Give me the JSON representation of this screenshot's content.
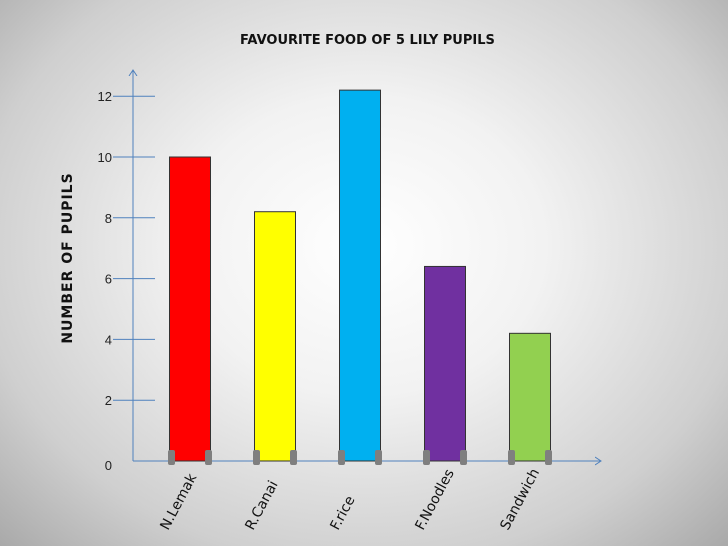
{
  "chart_data": {
    "type": "bar",
    "title": "FAVOURITE FOOD OF 5 LILY PUPILS",
    "ylabel": "NUMBER OF PUPILS",
    "xlabel": "",
    "categories": [
      "N.Lemak",
      "R.Canai",
      "F.rice",
      "F.Noodles",
      "Sandwich"
    ],
    "values": [
      10,
      8.2,
      12.2,
      6.4,
      4.2
    ],
    "colors": [
      "#ff0000",
      "#ffff00",
      "#00b0f0",
      "#7030a0",
      "#92d050"
    ],
    "yticks": [
      0,
      2,
      4,
      6,
      8,
      10,
      12
    ],
    "ylim": [
      0,
      12.5
    ],
    "grid": false,
    "legend": "none"
  }
}
